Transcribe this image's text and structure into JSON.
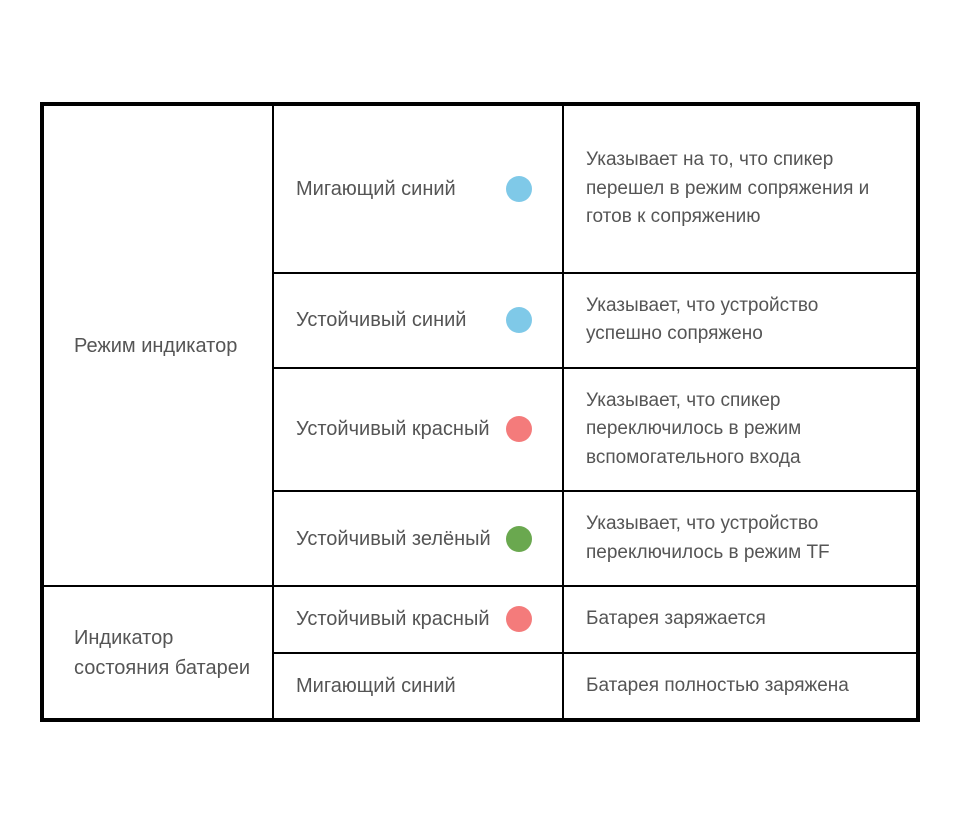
{
  "table": {
    "border_color": "#000000",
    "background_color": "#ffffff",
    "text_color": "#555555",
    "font_size": 20,
    "columns": [
      "category",
      "state",
      "description"
    ],
    "sections": [
      {
        "category": "Режим индикатор",
        "rows": [
          {
            "state_label": "Мигающий синий",
            "has_dot": true,
            "dot_color": "#7fc9e8",
            "description": "Указывает на то, что спикер перешел в режим сопряжения и готов к сопряжению"
          },
          {
            "state_label": "Устойчивый синий",
            "has_dot": true,
            "dot_color": "#7fc9e8",
            "description": "Указывает, что устройство успешно сопряжено"
          },
          {
            "state_label": "Устойчивый красный",
            "has_dot": true,
            "dot_color": "#f47b7b",
            "description": "Указывает, что спикер переключилось в режим вспомогательного входа"
          },
          {
            "state_label": "Устойчивый зелёный",
            "has_dot": true,
            "dot_color": "#6aa84f",
            "description": "Указывает, что устройство переключилось в режим TF"
          }
        ]
      },
      {
        "category": "Индикатор состояния батареи",
        "rows": [
          {
            "state_label": "Устойчивый красный",
            "has_dot": true,
            "dot_color": "#f47b7b",
            "description": "Батарея заряжается"
          },
          {
            "state_label": "Мигающий синий",
            "has_dot": false,
            "dot_color": "",
            "description": "Батарея полностью заряжена"
          }
        ]
      }
    ]
  }
}
